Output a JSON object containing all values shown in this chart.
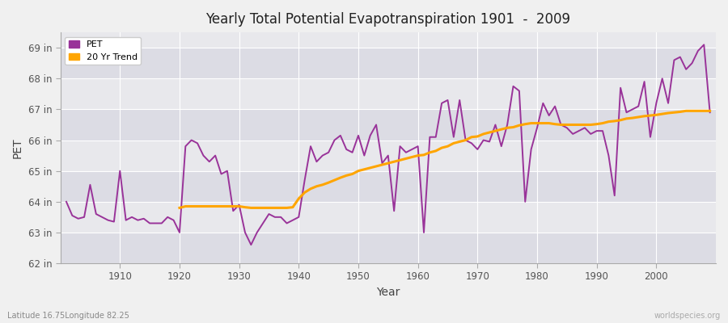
{
  "title": "Yearly Total Potential Evapotranspiration 1901  -  2009",
  "xlabel": "Year",
  "ylabel": "PET",
  "years": [
    1901,
    1902,
    1903,
    1904,
    1905,
    1906,
    1907,
    1908,
    1909,
    1910,
    1911,
    1912,
    1913,
    1914,
    1915,
    1916,
    1917,
    1918,
    1919,
    1920,
    1921,
    1922,
    1923,
    1924,
    1925,
    1926,
    1927,
    1928,
    1929,
    1930,
    1931,
    1932,
    1933,
    1934,
    1935,
    1936,
    1937,
    1938,
    1939,
    1940,
    1941,
    1942,
    1943,
    1944,
    1945,
    1946,
    1947,
    1948,
    1949,
    1950,
    1951,
    1952,
    1953,
    1954,
    1955,
    1956,
    1957,
    1958,
    1959,
    1960,
    1961,
    1962,
    1963,
    1964,
    1965,
    1966,
    1967,
    1968,
    1969,
    1970,
    1971,
    1972,
    1973,
    1974,
    1975,
    1976,
    1977,
    1978,
    1979,
    1980,
    1981,
    1982,
    1983,
    1984,
    1985,
    1986,
    1987,
    1988,
    1989,
    1990,
    1991,
    1992,
    1993,
    1994,
    1995,
    1996,
    1997,
    1998,
    1999,
    2000,
    2001,
    2002,
    2003,
    2004,
    2005,
    2006,
    2007,
    2008,
    2009
  ],
  "pet": [
    64.0,
    63.55,
    63.45,
    63.5,
    64.55,
    63.6,
    63.5,
    63.4,
    63.35,
    65.0,
    63.4,
    63.5,
    63.4,
    63.45,
    63.3,
    63.3,
    63.3,
    63.5,
    63.4,
    63.0,
    65.8,
    66.0,
    65.9,
    65.5,
    65.3,
    65.5,
    64.9,
    65.0,
    63.7,
    63.9,
    63.0,
    62.6,
    63.0,
    63.3,
    63.6,
    63.5,
    63.5,
    63.3,
    63.4,
    63.5,
    64.7,
    65.8,
    65.3,
    65.5,
    65.6,
    66.0,
    66.15,
    65.7,
    65.6,
    66.15,
    65.5,
    66.15,
    66.5,
    65.25,
    65.5,
    63.7,
    65.8,
    65.6,
    65.7,
    65.8,
    63.0,
    66.1,
    66.1,
    67.2,
    67.3,
    66.1,
    67.3,
    66.0,
    65.9,
    65.7,
    66.0,
    65.95,
    66.5,
    65.8,
    66.5,
    67.75,
    67.6,
    64.0,
    65.7,
    66.4,
    67.2,
    66.8,
    67.1,
    66.5,
    66.4,
    66.2,
    66.3,
    66.4,
    66.2,
    66.3,
    66.3,
    65.5,
    64.2,
    67.7,
    66.9,
    67.0,
    67.1,
    67.9,
    66.1,
    67.2,
    68.0,
    67.2,
    68.6,
    68.7,
    68.3,
    68.5,
    68.9,
    69.1,
    66.9
  ],
  "trend_start_year": 1920,
  "trend_years": [
    1920,
    1921,
    1922,
    1923,
    1924,
    1925,
    1926,
    1927,
    1928,
    1929,
    1930,
    1931,
    1932,
    1933,
    1934,
    1935,
    1936,
    1937,
    1938,
    1939,
    1940,
    1941,
    1942,
    1943,
    1944,
    1945,
    1946,
    1947,
    1948,
    1949,
    1950,
    1951,
    1952,
    1953,
    1954,
    1955,
    1956,
    1957,
    1958,
    1959,
    1960,
    1961,
    1962,
    1963,
    1964,
    1965,
    1966,
    1967,
    1968,
    1969,
    1970,
    1971,
    1972,
    1973,
    1974,
    1975,
    1976,
    1977,
    1978,
    1979,
    1980,
    1981,
    1982,
    1983,
    1984,
    1985,
    1986,
    1987,
    1988,
    1989,
    1990,
    1991,
    1992,
    1993,
    1994,
    1995,
    1996,
    1997,
    1998,
    1999,
    2000,
    2001,
    2002,
    2003,
    2004,
    2005,
    2006,
    2007,
    2008,
    2009
  ],
  "trend": [
    63.8,
    63.85,
    63.85,
    63.85,
    63.85,
    63.85,
    63.85,
    63.85,
    63.85,
    63.85,
    63.85,
    63.82,
    63.8,
    63.8,
    63.8,
    63.8,
    63.8,
    63.8,
    63.8,
    63.82,
    64.1,
    64.3,
    64.42,
    64.5,
    64.55,
    64.62,
    64.7,
    64.78,
    64.85,
    64.9,
    65.0,
    65.05,
    65.1,
    65.15,
    65.2,
    65.25,
    65.3,
    65.35,
    65.4,
    65.45,
    65.5,
    65.52,
    65.6,
    65.65,
    65.75,
    65.8,
    65.9,
    65.95,
    66.0,
    66.1,
    66.12,
    66.2,
    66.25,
    66.3,
    66.35,
    66.4,
    66.42,
    66.48,
    66.52,
    66.55,
    66.55,
    66.55,
    66.55,
    66.52,
    66.5,
    66.5,
    66.5,
    66.5,
    66.5,
    66.5,
    66.52,
    66.55,
    66.6,
    66.62,
    66.65,
    66.7,
    66.72,
    66.75,
    66.78,
    66.8,
    66.82,
    66.85,
    66.88,
    66.9,
    66.92,
    66.95,
    66.95,
    66.95,
    66.95,
    66.95
  ],
  "pet_color": "#993399",
  "trend_color": "#FFA500",
  "bg_color": "#f0f0f0",
  "plot_bg_color": "#e8e8ec",
  "band_color_light": "#dcdce4",
  "band_color_dark": "#e8e8ec",
  "grid_color": "#ffffff",
  "ylim": [
    62,
    69.5
  ],
  "yticks": [
    62,
    63,
    64,
    65,
    66,
    67,
    68,
    69
  ],
  "ytick_labels": [
    "62 in",
    "63 in",
    "64 in",
    "65 in",
    "66 in",
    "67 in",
    "68 in",
    "69 in"
  ],
  "xticks": [
    1910,
    1920,
    1930,
    1940,
    1950,
    1960,
    1970,
    1980,
    1990,
    2000
  ],
  "legend_pet": "PET",
  "legend_trend": "20 Yr Trend",
  "footnote_left": "Latitude 16.75Longitude 82.25",
  "footnote_right": "worldspecies.org",
  "linewidth_pet": 1.4,
  "linewidth_trend": 2.2,
  "xlim_left": 1900,
  "xlim_right": 2010
}
